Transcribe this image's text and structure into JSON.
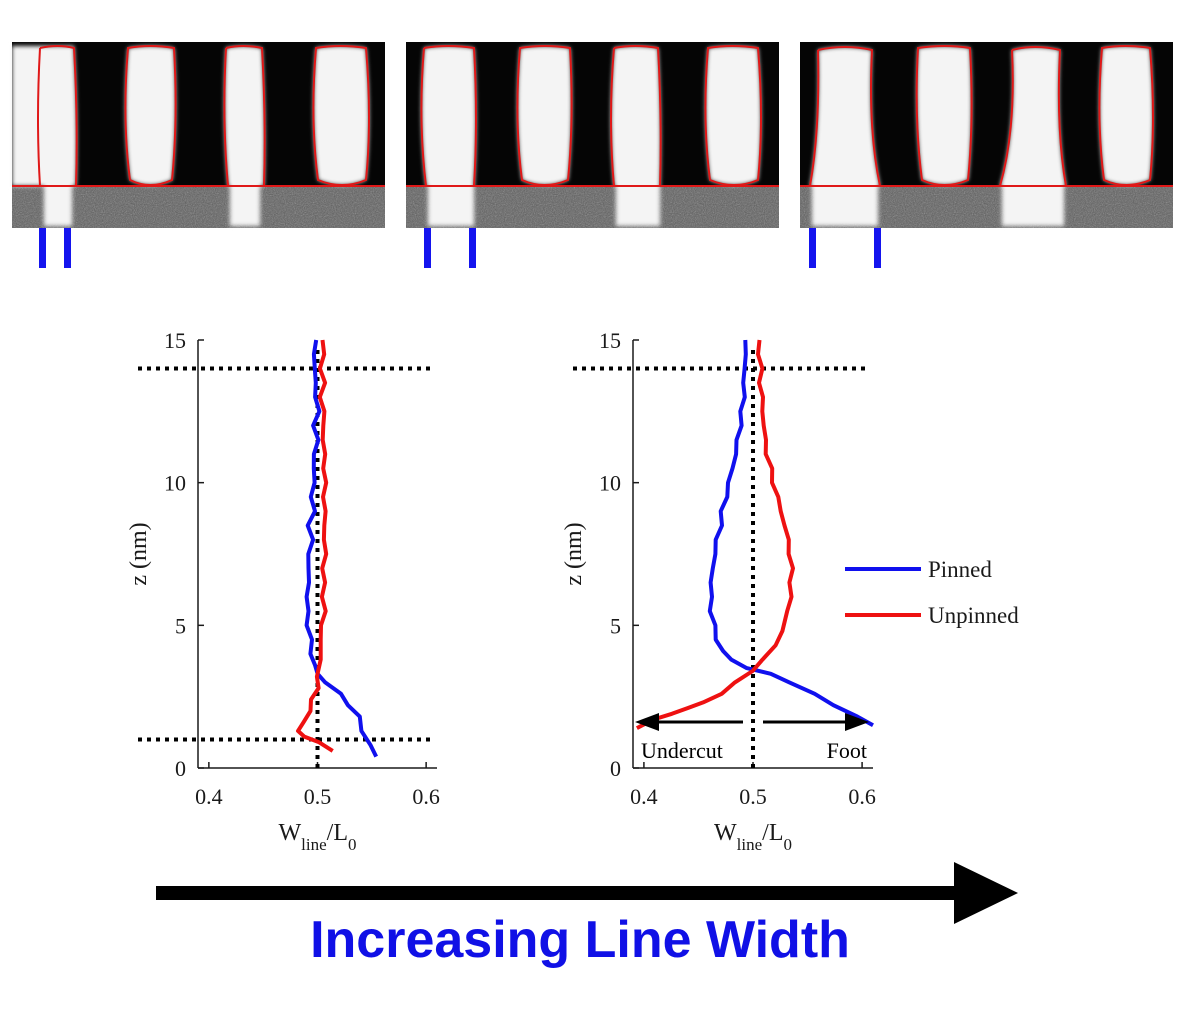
{
  "colors": {
    "pinned": "#1010ee",
    "unpinned": "#ee1111",
    "caption": "#1010e6",
    "arrow": "#000000",
    "contour": "#e01818"
  },
  "caption": "Increasing Line Width",
  "icons": [
    "arrow-right-icon",
    "arrow-left-icon"
  ],
  "chart_data": [
    {
      "type": "line",
      "xlabel": "W",
      "xlabel_sub": "line",
      "xlabel_mid": "/L",
      "xlabel_sub2": "0",
      "ylabel": "z (nm)",
      "xlim": [
        0.39,
        0.61
      ],
      "ylim": [
        0,
        15
      ],
      "xticks": [
        "0.4",
        "0.5",
        "0.6"
      ],
      "yticks": [
        "0",
        "5",
        "10",
        "15"
      ],
      "reference_lines": {
        "horizontal": [
          1,
          14
        ],
        "vertical": [
          0.5
        ]
      },
      "series": [
        {
          "key": "pinned",
          "points": [
            [
              0.554,
              0.4
            ],
            [
              0.548,
              0.8
            ],
            [
              0.542,
              1.3
            ],
            [
              0.537,
              1.8
            ],
            [
              0.53,
              2.2
            ],
            [
              0.52,
              2.6
            ],
            [
              0.508,
              3.0
            ],
            [
              0.5,
              3.3
            ],
            [
              0.497,
              3.6
            ],
            [
              0.495,
              4.0
            ],
            [
              0.493,
              4.5
            ],
            [
              0.492,
              5.0
            ],
            [
              0.49,
              5.5
            ],
            [
              0.491,
              6.0
            ],
            [
              0.492,
              6.5
            ],
            [
              0.491,
              7.0
            ],
            [
              0.493,
              7.5
            ],
            [
              0.494,
              8.0
            ],
            [
              0.493,
              8.5
            ],
            [
              0.496,
              9.0
            ],
            [
              0.495,
              9.5
            ],
            [
              0.497,
              10.0
            ],
            [
              0.496,
              10.5
            ],
            [
              0.498,
              11.0
            ],
            [
              0.499,
              11.5
            ],
            [
              0.498,
              12.0
            ],
            [
              0.5,
              12.5
            ],
            [
              0.499,
              13.0
            ],
            [
              0.498,
              13.5
            ],
            [
              0.497,
              14.0
            ],
            [
              0.498,
              14.5
            ],
            [
              0.497,
              15.0
            ]
          ]
        },
        {
          "key": "unpinned",
          "points": [
            [
              0.512,
              0.6
            ],
            [
              0.503,
              0.9
            ],
            [
              0.487,
              1.1
            ],
            [
              0.482,
              1.3
            ],
            [
              0.488,
              1.6
            ],
            [
              0.492,
              2.0
            ],
            [
              0.496,
              2.4
            ],
            [
              0.499,
              2.8
            ],
            [
              0.501,
              3.2
            ],
            [
              0.502,
              3.8
            ],
            [
              0.503,
              4.5
            ],
            [
              0.504,
              5.0
            ],
            [
              0.506,
              5.5
            ],
            [
              0.506,
              6.0
            ],
            [
              0.505,
              6.5
            ],
            [
              0.506,
              7.0
            ],
            [
              0.507,
              7.5
            ],
            [
              0.506,
              8.0
            ],
            [
              0.507,
              8.5
            ],
            [
              0.506,
              9.0
            ],
            [
              0.507,
              9.5
            ],
            [
              0.506,
              10.0
            ],
            [
              0.507,
              10.5
            ],
            [
              0.506,
              11.0
            ],
            [
              0.505,
              11.5
            ],
            [
              0.506,
              12.0
            ],
            [
              0.505,
              12.5
            ],
            [
              0.504,
              13.0
            ],
            [
              0.505,
              13.5
            ],
            [
              0.504,
              14.0
            ],
            [
              0.505,
              14.5
            ],
            [
              0.505,
              15.0
            ]
          ]
        }
      ]
    },
    {
      "type": "line",
      "xlabel": "W",
      "xlabel_sub": "line",
      "xlabel_mid": "/L",
      "xlabel_sub2": "0",
      "ylabel": "z (nm)",
      "xlim": [
        0.39,
        0.61
      ],
      "ylim": [
        0,
        15
      ],
      "xticks": [
        "0.4",
        "0.5",
        "0.6"
      ],
      "yticks": [
        "0",
        "5",
        "10",
        "15"
      ],
      "reference_lines": {
        "horizontal": [
          14
        ],
        "vertical": [
          0.5
        ]
      },
      "annotations": {
        "left_arrow_label": "Undercut",
        "right_arrow_label": "Foot",
        "arrow_z": 1.4
      },
      "legend": {
        "placement": "right",
        "entries": [
          {
            "key": "pinned",
            "label": "Pinned"
          },
          {
            "key": "unpinned",
            "label": "Unpinned"
          }
        ]
      },
      "series": [
        {
          "key": "pinned",
          "points": [
            [
              0.61,
              1.5
            ],
            [
              0.595,
              1.8
            ],
            [
              0.575,
              2.2
            ],
            [
              0.555,
              2.6
            ],
            [
              0.535,
              3.0
            ],
            [
              0.515,
              3.3
            ],
            [
              0.495,
              3.5
            ],
            [
              0.48,
              3.8
            ],
            [
              0.472,
              4.1
            ],
            [
              0.467,
              4.5
            ],
            [
              0.464,
              5.0
            ],
            [
              0.462,
              5.5
            ],
            [
              0.461,
              6.0
            ],
            [
              0.462,
              6.5
            ],
            [
              0.463,
              7.0
            ],
            [
              0.465,
              7.5
            ],
            [
              0.467,
              8.0
            ],
            [
              0.47,
              8.5
            ],
            [
              0.472,
              9.0
            ],
            [
              0.475,
              9.5
            ],
            [
              0.478,
              10.0
            ],
            [
              0.481,
              10.5
            ],
            [
              0.484,
              11.0
            ],
            [
              0.486,
              11.5
            ],
            [
              0.488,
              12.0
            ],
            [
              0.49,
              12.5
            ],
            [
              0.491,
              13.0
            ],
            [
              0.492,
              13.5
            ],
            [
              0.492,
              14.0
            ],
            [
              0.493,
              14.5
            ],
            [
              0.494,
              15.0
            ]
          ]
        },
        {
          "key": "unpinned",
          "points": [
            [
              0.392,
              1.4
            ],
            [
              0.41,
              1.7
            ],
            [
              0.425,
              1.9
            ],
            [
              0.44,
              2.1
            ],
            [
              0.455,
              2.3
            ],
            [
              0.47,
              2.6
            ],
            [
              0.485,
              3.0
            ],
            [
              0.498,
              3.4
            ],
            [
              0.51,
              3.8
            ],
            [
              0.52,
              4.3
            ],
            [
              0.527,
              4.8
            ],
            [
              0.532,
              5.5
            ],
            [
              0.534,
              6.0
            ],
            [
              0.535,
              6.5
            ],
            [
              0.535,
              7.0
            ],
            [
              0.534,
              7.5
            ],
            [
              0.532,
              8.0
            ],
            [
              0.529,
              8.5
            ],
            [
              0.526,
              9.0
            ],
            [
              0.522,
              9.5
            ],
            [
              0.519,
              10.0
            ],
            [
              0.516,
              10.5
            ],
            [
              0.513,
              11.0
            ],
            [
              0.511,
              11.5
            ],
            [
              0.51,
              12.0
            ],
            [
              0.509,
              12.5
            ],
            [
              0.508,
              13.0
            ],
            [
              0.507,
              13.5
            ],
            [
              0.507,
              14.0
            ],
            [
              0.506,
              14.5
            ],
            [
              0.505,
              15.0
            ]
          ]
        }
      ]
    }
  ]
}
